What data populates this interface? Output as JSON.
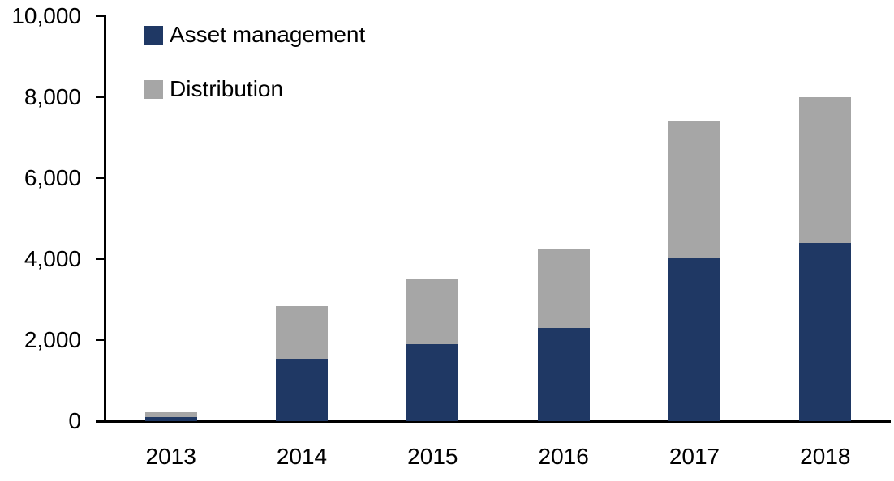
{
  "chart_data": {
    "type": "bar",
    "stacked": true,
    "title": "",
    "xlabel": "",
    "ylabel": "",
    "categories": [
      "2013",
      "2014",
      "2015",
      "2016",
      "2017",
      "2018"
    ],
    "series": [
      {
        "name": "Asset management",
        "color": "#1f3864",
        "values": [
          100,
          1550,
          1900,
          2300,
          4050,
          4400
        ]
      },
      {
        "name": "Distribution",
        "color": "#a6a6a6",
        "values": [
          120,
          1300,
          1600,
          1950,
          3350,
          3600
        ]
      }
    ],
    "totals": [
      220,
      2850,
      3500,
      4250,
      7400,
      8000
    ],
    "ylim": [
      0,
      10000
    ],
    "yticks": [
      0,
      2000,
      4000,
      6000,
      8000,
      10000
    ],
    "ytick_labels": [
      "0",
      "2,000",
      "4,000",
      "6,000",
      "8,000",
      "10,000"
    ],
    "grid": false,
    "legend_position": "top-left",
    "axis_color": "#000000",
    "text_color": "#000000",
    "background_color": "#ffffff"
  }
}
